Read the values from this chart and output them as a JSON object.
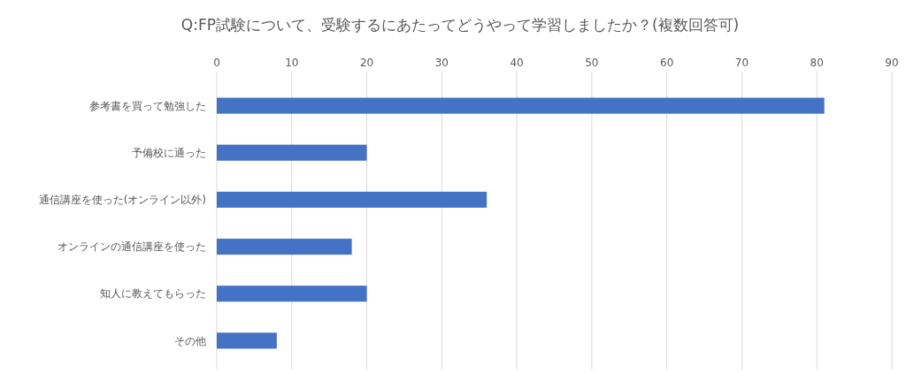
{
  "chart_data": {
    "type": "bar",
    "orientation": "horizontal",
    "title": "Q:FP試験について、受験するにあたってどうやって学習しましたか？(複数回答可)",
    "categories": [
      "参考書を買って勉強した",
      "予備校に通った",
      "通信講座を使った(オンライン以外)",
      "オンラインの通信講座を使った",
      "知人に教えてもらった",
      "その他"
    ],
    "values": [
      81,
      20,
      36,
      18,
      20,
      8
    ],
    "color": "#4472c4",
    "xlim": [
      0,
      90
    ],
    "xticks": [
      0,
      10,
      20,
      30,
      40,
      50,
      60,
      70,
      80,
      90
    ],
    "grid": "x"
  }
}
